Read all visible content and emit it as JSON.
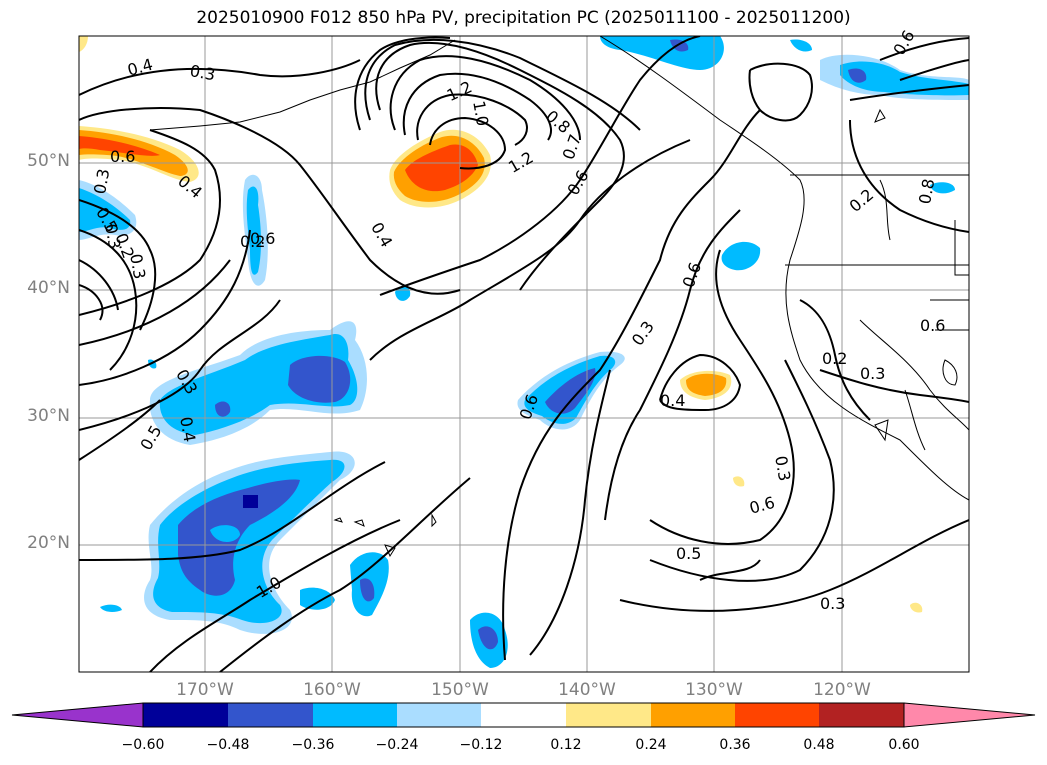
{
  "title": "2025010900 F012 850 hPa PV, precipitation PC (2025011100 - 2025011200)",
  "lat_ticks": [
    "50°N",
    "40°N",
    "30°N",
    "20°N"
  ],
  "lon_ticks": [
    "170°W",
    "160°W",
    "150°W",
    "140°W",
    "130°W",
    "120°W"
  ],
  "contour_labels": [
    "0.4",
    "0.3",
    "1.2",
    "1.0",
    "0.8",
    "0.7",
    "0.6",
    "1.2",
    "0.6",
    "0.6",
    "0.4",
    "0.3",
    "0.5",
    "0.3",
    "0.2",
    "0.3",
    "0.2",
    "0.4",
    "0.3",
    "0.4",
    "0.5",
    "0.3",
    "0.4",
    "0.6",
    "0.6",
    "0.5",
    "0.6",
    "0.3",
    "0.3",
    "0.3",
    "0.6",
    "0.2",
    "0.2",
    "1.0",
    "0.8",
    "0.6"
  ],
  "colorbar": {
    "labels": [
      "−0.60",
      "−0.48",
      "−0.36",
      "−0.24",
      "−0.12",
      "0.12",
      "0.24",
      "0.36",
      "0.48",
      "0.60"
    ],
    "colors": [
      "#9933cc",
      "#000099",
      "#3355cc",
      "#00bbff",
      "#aaddff",
      "#ffffff",
      "#ffe888",
      "#ffa000",
      "#ff4400",
      "#b22222",
      "#ff88aa"
    ]
  },
  "shading_colors": {
    "light_blue": "#aaddff",
    "blue": "#00bbff",
    "mid_blue": "#3355cc",
    "dark_blue": "#000099",
    "yellow": "#ffe888",
    "orange": "#ffa000",
    "red_orange": "#ff4400"
  }
}
